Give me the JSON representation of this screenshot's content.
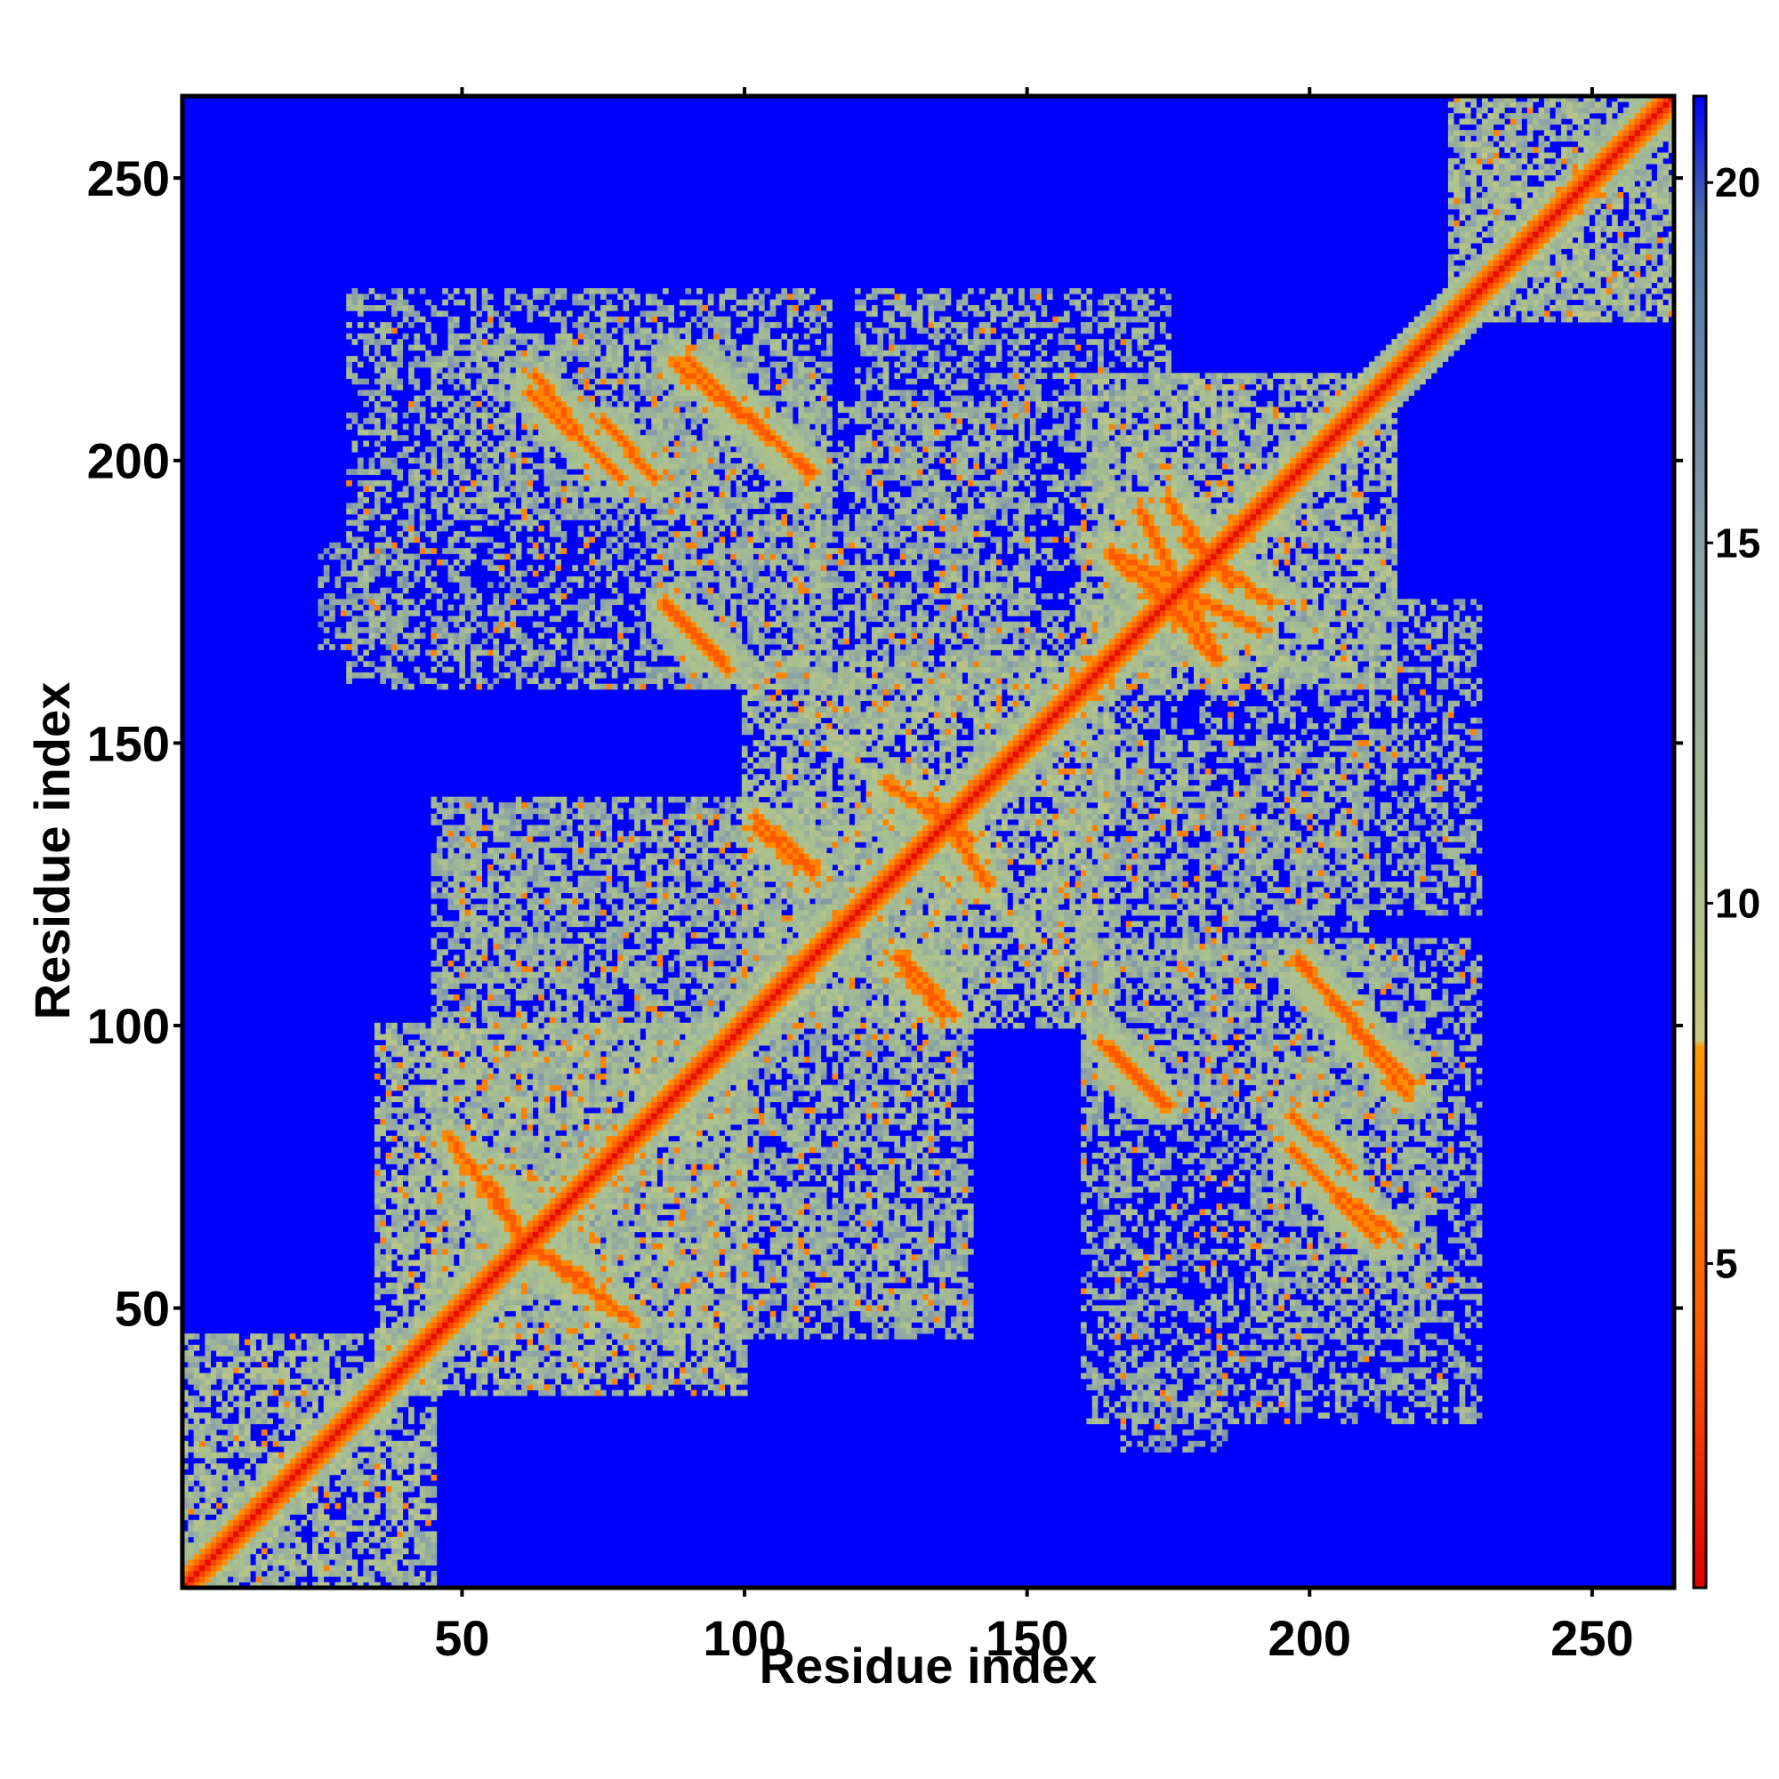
{
  "chart_data": {
    "type": "heatmap",
    "title": "",
    "xlabel": "Residue index",
    "ylabel": "Residue index",
    "xlim": [
      1,
      264
    ],
    "ylim": [
      1,
      264
    ],
    "x_ticks": [
      50,
      100,
      150,
      200,
      250
    ],
    "y_ticks": [
      50,
      100,
      150,
      200,
      250
    ],
    "x_tick_labels": [
      "50",
      "100",
      "150",
      "200",
      "250"
    ],
    "y_tick_labels": [
      "50",
      "100",
      "150",
      "200",
      "250"
    ],
    "colorbar": {
      "range": [
        0.5,
        21.2
      ],
      "ticks": [
        5,
        10,
        15,
        20
      ],
      "tick_labels": [
        "5",
        "10",
        "15",
        "20"
      ],
      "stops": [
        {
          "value": 0.5,
          "color": "#e00000"
        },
        {
          "value": 4.0,
          "color": "#ff5a00"
        },
        {
          "value": 8.0,
          "color": "#ff9900"
        },
        {
          "value": 8.1,
          "color": "#c8c880"
        },
        {
          "value": 10.5,
          "color": "#a8c090"
        },
        {
          "value": 15.0,
          "color": "#8aa0a8"
        },
        {
          "value": 19.5,
          "color": "#4a70a8"
        },
        {
          "value": 21.2,
          "color": "#0000ff"
        }
      ]
    },
    "background_value": 21,
    "background_color": "#0000ff",
    "diagonal": {
      "value": 1,
      "color": "#e00000",
      "halo_color": "#ff5a00"
    },
    "contact_features": [
      {
        "type": "block",
        "x": [
          1,
          45
        ],
        "y": [
          1,
          45
        ],
        "value": 11
      },
      {
        "type": "block",
        "x": [
          35,
          100
        ],
        "y": [
          35,
          100
        ],
        "value": 11
      },
      {
        "type": "block",
        "x": [
          100,
          165
        ],
        "y": [
          100,
          165
        ],
        "value": 11
      },
      {
        "type": "block",
        "x": [
          160,
          215
        ],
        "y": [
          160,
          215
        ],
        "value": 11
      },
      {
        "type": "block",
        "x": [
          225,
          264
        ],
        "y": [
          225,
          264
        ],
        "value": 11
      },
      {
        "type": "antidiagonal",
        "x": [
          62,
          78
        ],
        "y": [
          212,
          197
        ],
        "value": 4
      },
      {
        "type": "antidiagonal",
        "x": [
          88,
          112
        ],
        "y": [
          217,
          198
        ],
        "value": 4
      },
      {
        "type": "antidiagonal",
        "x": [
          86,
          97
        ],
        "y": [
          174,
          163
        ],
        "value": 4
      },
      {
        "type": "antidiagonal",
        "x": [
          165,
          175
        ],
        "y": [
          96,
          86
        ],
        "value": 4
      },
      {
        "type": "antidiagonal",
        "x": [
          198,
          218
        ],
        "y": [
          111,
          90
        ],
        "value": 4
      },
      {
        "type": "antidiagonal",
        "x": [
          197,
          207
        ],
        "y": [
          84,
          75
        ],
        "value": 4
      },
      {
        "type": "antidiagonal",
        "x": [
          206,
          215
        ],
        "y": [
          70,
          63
        ],
        "value": 4
      },
      {
        "type": "antidiagonal",
        "x": [
          128,
          137
        ],
        "y": [
          112,
          102
        ],
        "value": 4
      },
      {
        "type": "antidiagonal",
        "x": [
          102,
          112
        ],
        "y": [
          135,
          127
        ],
        "value": 4
      },
      {
        "type": "antidiagonal",
        "x": [
          133,
          143
        ],
        "y": [
          140,
          125
        ],
        "value": 4
      },
      {
        "type": "antidiagonal",
        "x": [
          170,
          184
        ],
        "y": [
          191,
          165
        ],
        "value": 4
      },
      {
        "type": "antidiagonal",
        "x": [
          178,
          193
        ],
        "y": [
          186,
          175
        ],
        "value": 4
      },
      {
        "type": "antidiagonal",
        "x": [
          165,
          178
        ],
        "y": [
          183,
          172
        ],
        "value": 4
      },
      {
        "type": "antidiagonal",
        "x": [
          55,
          62
        ],
        "y": [
          72,
          60
        ],
        "value": 4
      },
      {
        "type": "antidiagonal",
        "x": [
          63,
          80
        ],
        "y": [
          60,
          48
        ],
        "value": 4
      },
      {
        "type": "block",
        "x": [
          84,
          115
        ],
        "y": [
          160,
          220
        ],
        "value": 12
      },
      {
        "type": "block",
        "x": [
          45,
          100
        ],
        "y": [
          190,
          222
        ],
        "value": 12
      },
      {
        "type": "block",
        "x": [
          160,
          230
        ],
        "y": [
          30,
          115
        ],
        "value": 12
      },
      {
        "type": "block",
        "x": [
          110,
          150
        ],
        "y": [
          150,
          210
        ],
        "value": 12
      },
      {
        "type": "block",
        "x": [
          160,
          230
        ],
        "y": [
          120,
          175
        ],
        "value": 12
      },
      {
        "type": "block",
        "x": [
          45,
          140
        ],
        "y": [
          45,
          140
        ],
        "value": 12
      },
      {
        "type": "block",
        "x": [
          25,
          40
        ],
        "y": [
          167,
          185
        ],
        "value": 13
      }
    ]
  }
}
